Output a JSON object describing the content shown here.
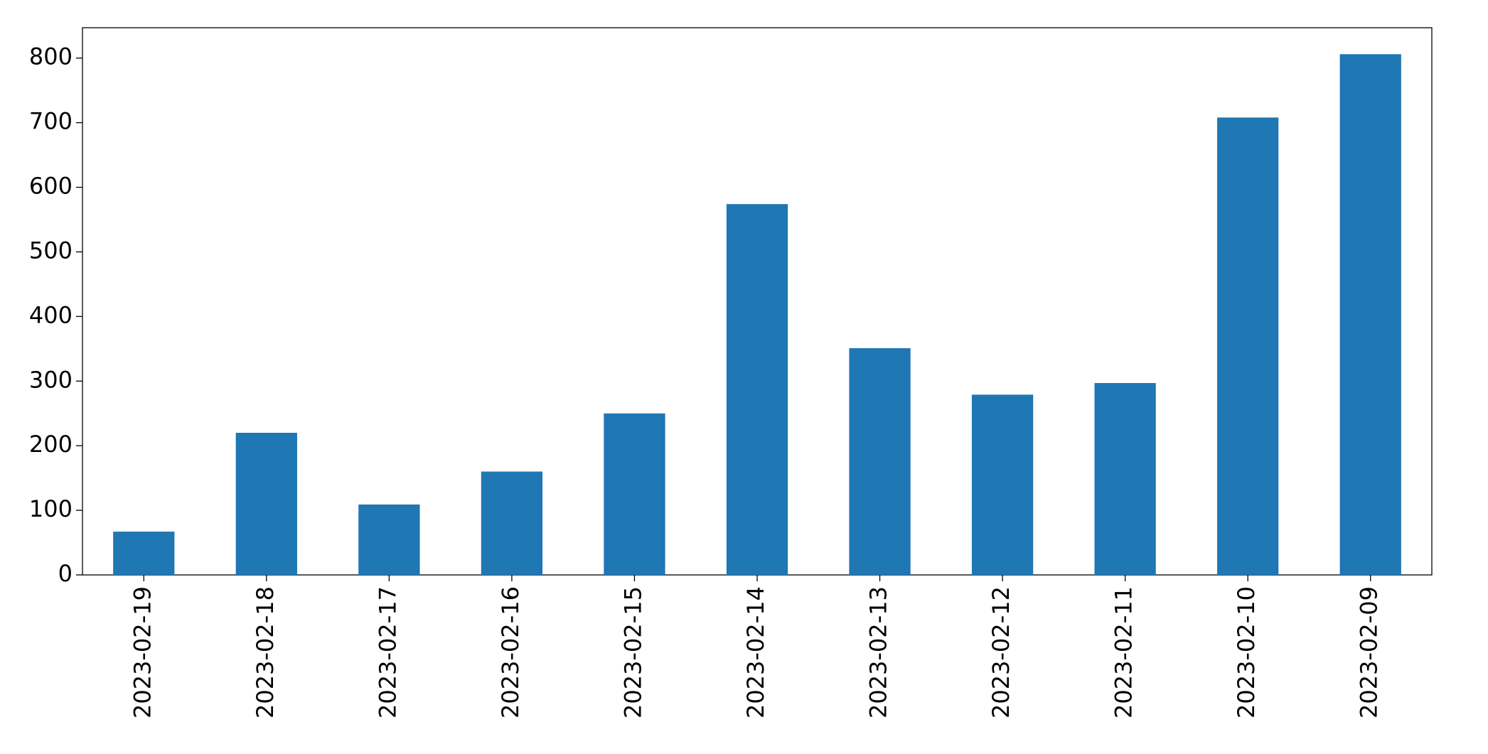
{
  "chart_data": {
    "type": "bar",
    "categories": [
      "2023-02-19",
      "2023-02-18",
      "2023-02-17",
      "2023-02-16",
      "2023-02-15",
      "2023-02-14",
      "2023-02-13",
      "2023-02-12",
      "2023-02-11",
      "2023-02-10",
      "2023-02-09"
    ],
    "values": [
      67,
      220,
      109,
      160,
      250,
      574,
      351,
      279,
      297,
      708,
      806
    ],
    "color": "#1f77b4",
    "ylim": [
      0,
      847
    ],
    "yticks": [
      0,
      100,
      200,
      300,
      400,
      500,
      600,
      700,
      800
    ],
    "grid": false
  }
}
